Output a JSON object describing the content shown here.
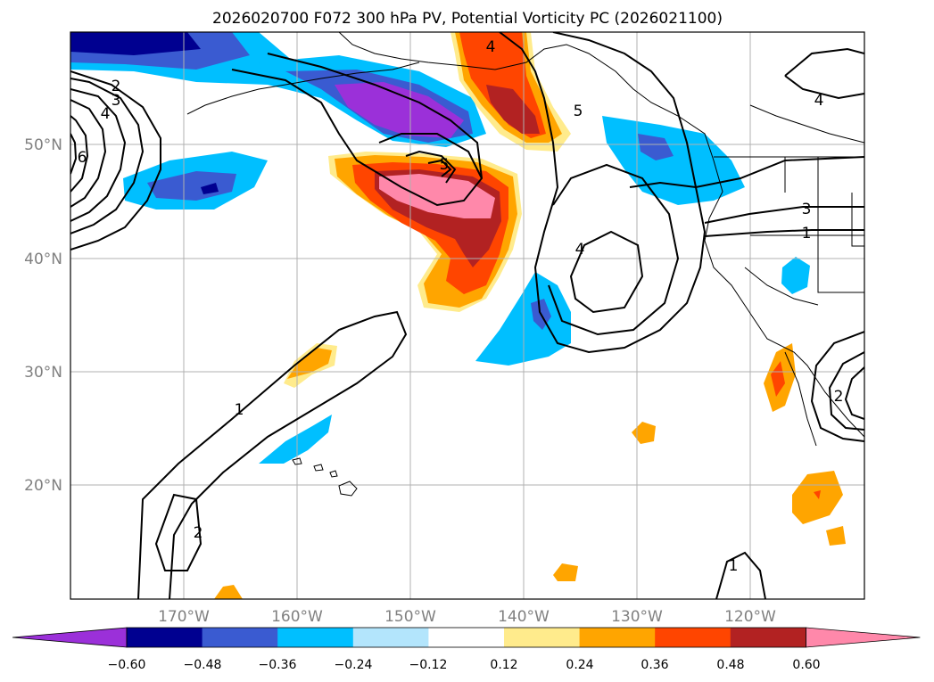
{
  "title": "2026020700 F072 300 hPa PV, Potential Vorticity PC (2026021100)",
  "lat_labels": [
    "50°N",
    "40°N",
    "30°N",
    "20°N"
  ],
  "lon_labels": [
    "170°W",
    "160°W",
    "150°W",
    "140°W",
    "130°W",
    "120°W"
  ],
  "colorbar": {
    "ticks": [
      "−0.60",
      "−0.48",
      "−0.36",
      "−0.24",
      "−0.12",
      "0.12",
      "0.24",
      "0.36",
      "0.48",
      "0.60"
    ],
    "colors": [
      "#9b30d9",
      "#000090",
      "#3a5bd1",
      "#00bfff",
      "#b3e5fc",
      "#ffffff",
      "#ffeb8c",
      "#ffa500",
      "#ff4500",
      "#b22222",
      "#ff88aa"
    ]
  },
  "contour_labels": [
    "1",
    "2",
    "3",
    "4",
    "5",
    "6"
  ]
}
